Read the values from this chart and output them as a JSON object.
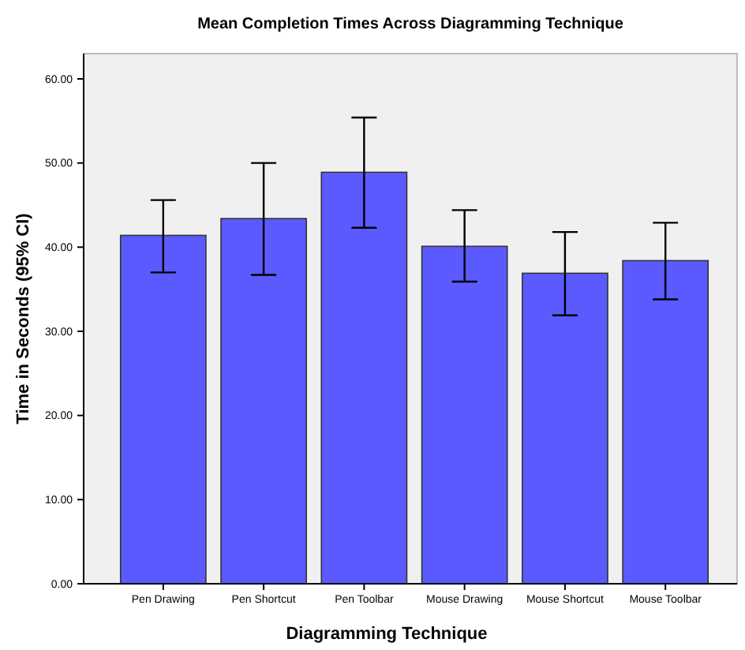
{
  "chart_data": {
    "type": "bar",
    "title": "Mean Completion Times Across Diagramming Technique",
    "xlabel": "Diagramming Technique",
    "ylabel": "Time in Seconds (95% CI)",
    "categories": [
      "Pen Drawing",
      "Pen Shortcut",
      "Pen Toolbar",
      "Mouse Drawing",
      "Mouse Shortcut",
      "Mouse Toolbar"
    ],
    "values": [
      41.4,
      43.4,
      48.9,
      40.1,
      36.9,
      38.4
    ],
    "errors": [
      [
        37.0,
        45.6
      ],
      [
        36.7,
        50.0
      ],
      [
        42.3,
        55.4
      ],
      [
        35.9,
        44.4
      ],
      [
        31.9,
        41.8
      ],
      [
        33.8,
        42.9
      ]
    ],
    "color": "#5a5aff",
    "ylim": [
      0,
      63
    ],
    "yticks": [
      {
        "value": 0,
        "label": "0.00"
      },
      {
        "value": 10,
        "label": "10.00"
      },
      {
        "value": 20,
        "label": "20.00"
      },
      {
        "value": 30,
        "label": "30.00"
      },
      {
        "value": 40,
        "label": "40.00"
      },
      {
        "value": 50,
        "label": "50.00"
      },
      {
        "value": 60,
        "label": "60.00"
      }
    ],
    "grid": false
  }
}
